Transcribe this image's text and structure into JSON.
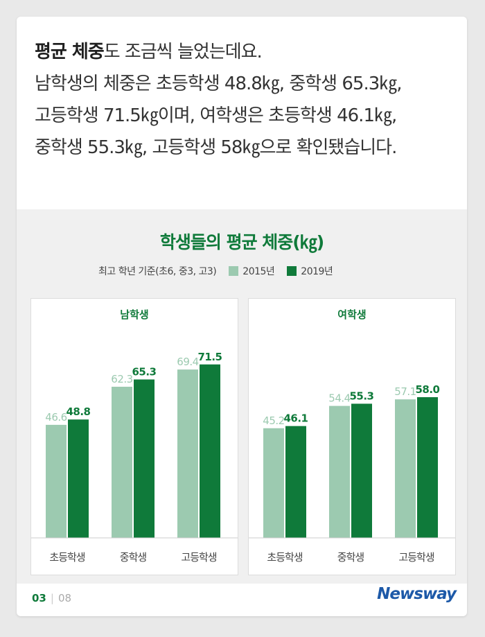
{
  "intro": {
    "strong": "평균 체중",
    "line1_rest": "도 조금씩 늘었는데요.",
    "line2": "남학생의 체중은 초등학생 48.8㎏, 중학생 65.3㎏,",
    "line3": "고등학생 71.5㎏이며, 여학생은 초등학생 46.1㎏,",
    "line4": "중학생 55.3㎏, 고등학생 58㎏으로 확인됐습니다."
  },
  "chart_data": {
    "type": "bar",
    "title": "학생들의 평균 체중(㎏)",
    "note": "최고 학년 기준(초6, 중3, 고3)",
    "legend": [
      {
        "label": "2015년",
        "color": "#9ccab0"
      },
      {
        "label": "2019년",
        "color": "#0f7a3a"
      }
    ],
    "categories": [
      "초등학생",
      "중학생",
      "고등학생"
    ],
    "panels": [
      {
        "title": "남학생",
        "series": [
          {
            "name": "2015년",
            "values": [
              46.6,
              62.3,
              69.4
            ]
          },
          {
            "name": "2019년",
            "values": [
              48.8,
              65.3,
              71.5
            ]
          }
        ]
      },
      {
        "title": "여학생",
        "series": [
          {
            "name": "2015년",
            "values": [
              45.2,
              54.4,
              57.1
            ]
          },
          {
            "name": "2019년",
            "values": [
              46.1,
              55.3,
              58.0
            ]
          }
        ]
      }
    ]
  },
  "footer": {
    "page": "03",
    "total": "08"
  },
  "brand": "Newsway"
}
